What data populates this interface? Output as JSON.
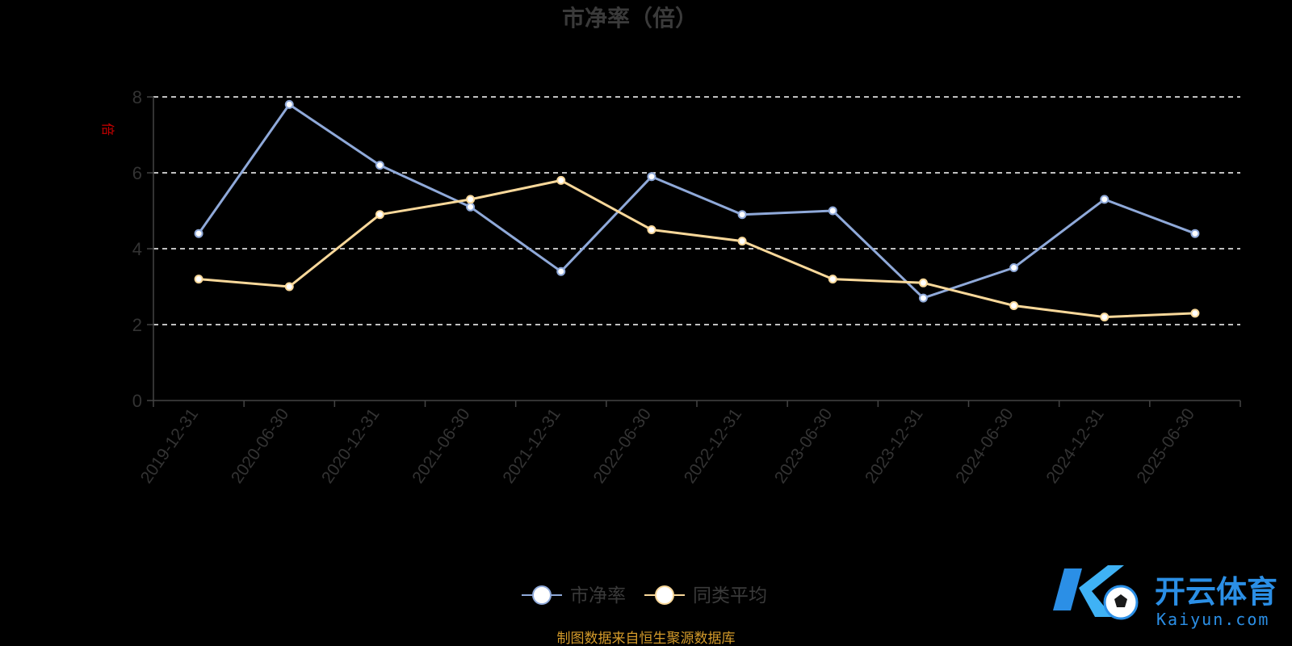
{
  "chart_data": {
    "type": "line",
    "title": "市净率（倍）",
    "ylabel": "倍",
    "xlabel": "",
    "ylim": [
      0,
      8
    ],
    "yticks": [
      "0",
      "2",
      "4",
      "6",
      "8"
    ],
    "grid": true,
    "legend_position": "bottom",
    "categories": [
      "2019-12-31",
      "2020-06-30",
      "2020-12-31",
      "2021-06-30",
      "2021-12-31",
      "2022-06-30",
      "2022-12-31",
      "2023-06-30",
      "2023-12-31",
      "2024-06-30",
      "2024-12-31",
      "2025-06-30"
    ],
    "series": [
      {
        "name": "市净率",
        "color": "#8fa9d9",
        "values": [
          4.4,
          7.8,
          6.2,
          5.1,
          3.4,
          5.9,
          4.9,
          5.0,
          2.7,
          3.5,
          5.3,
          4.4
        ]
      },
      {
        "name": "同类平均",
        "color": "#f9d89a",
        "values": [
          3.2,
          3.0,
          4.9,
          5.3,
          5.8,
          4.5,
          4.2,
          3.2,
          3.1,
          2.5,
          2.2,
          2.3
        ]
      }
    ]
  },
  "source_note": "制图数据来自恒生聚源数据库",
  "watermark": {
    "name_cn": "开云体育",
    "name_en": "Kaiyun.com"
  },
  "colors": {
    "background": "#000000",
    "axis": "#444444",
    "grid": "#ffffff",
    "source": "#d39a2a",
    "brand": "#2b8fe6"
  }
}
